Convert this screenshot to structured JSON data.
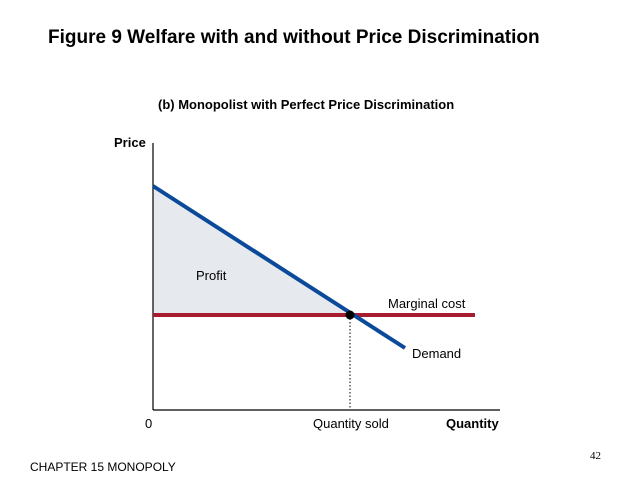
{
  "slide": {
    "title": "Figure 9 Welfare with and without Price Discrimination",
    "subtitle": "(b) Monopolist with Perfect Price Discrimination",
    "page_number": "42",
    "footer": "CHAPTER 15 MONOPOLY"
  },
  "diagram": {
    "y_axis_label": "Price",
    "x_axis_label": "Quantity",
    "origin_label": "0",
    "quantity_label": "Quantity sold",
    "area_label": "Profit",
    "curves": {
      "marginal_cost": "Marginal cost",
      "demand": "Demand"
    }
  },
  "colors": {
    "demand_line": "#0b4a9a",
    "marginal_cost_line": "#a81c30",
    "profit_fill": "#e6e9ee",
    "axis": "#000000"
  }
}
